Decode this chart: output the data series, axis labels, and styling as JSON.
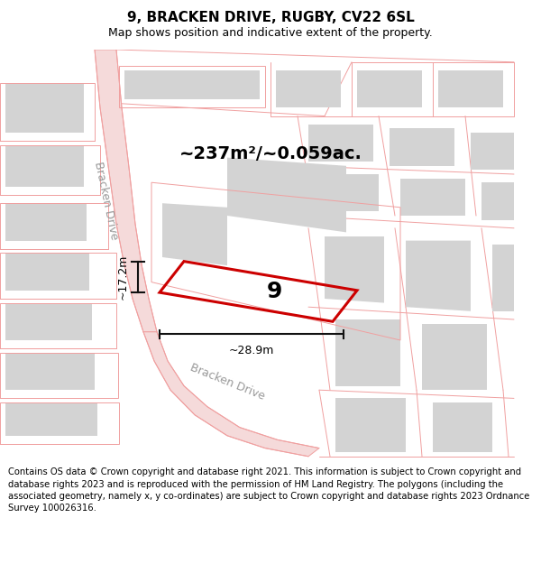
{
  "title": "9, BRACKEN DRIVE, RUGBY, CV22 6SL",
  "subtitle": "Map shows position and indicative extent of the property.",
  "footer": "Contains OS data © Crown copyright and database right 2021. This information is subject to Crown copyright and database rights 2023 and is reproduced with the permission of HM Land Registry. The polygons (including the associated geometry, namely x, y co-ordinates) are subject to Crown copyright and database rights 2023 Ordnance Survey 100026316.",
  "area_label": "~237m²/~0.059ac.",
  "width_label": "~28.9m",
  "height_label": "~17.2m",
  "number_label": "9",
  "road_label_1": "Bracken Drive",
  "road_label_2": "Bracken Drive",
  "map_bg": "#efefef",
  "block_color": "#d3d3d3",
  "road_line_color": "#f0a0a0",
  "road_fill_color": "#f5dada",
  "property_edge_color": "#cc0000",
  "dim_color": "#111111",
  "title_fontsize": 11,
  "subtitle_fontsize": 9,
  "footer_fontsize": 7.2,
  "area_fontsize": 14,
  "number_fontsize": 18,
  "road_fontsize": 9
}
